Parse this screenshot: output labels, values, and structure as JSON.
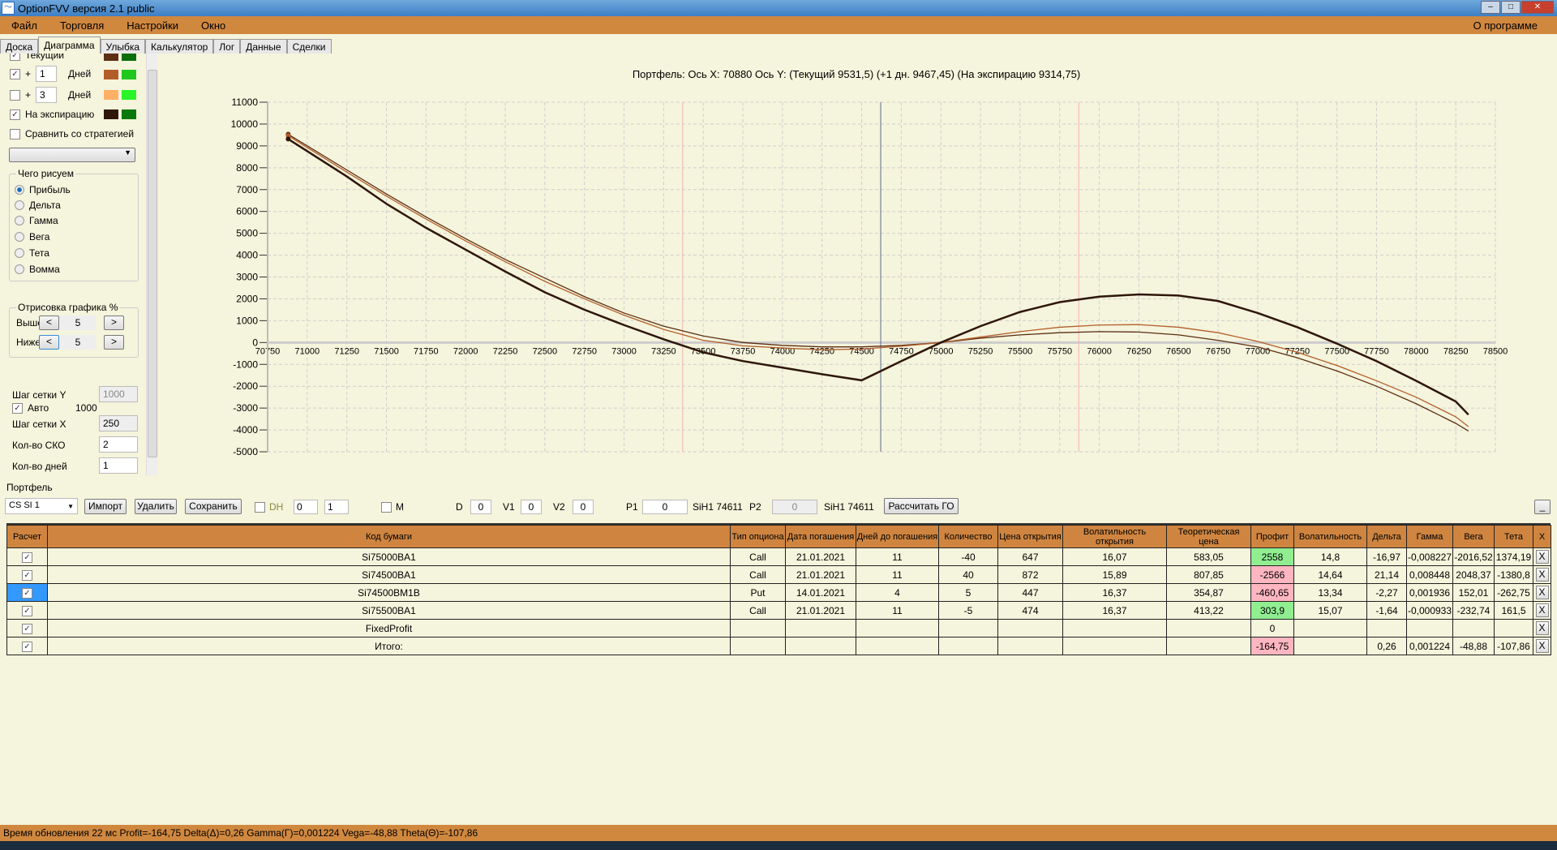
{
  "window": {
    "title": "OptionFVV версия 2.1 public"
  },
  "menu": {
    "items": [
      "Файл",
      "Торговля",
      "Настройки",
      "Окно"
    ],
    "about": "О программе"
  },
  "tabs": [
    "Доска",
    "Диаграмма",
    "Улыбка",
    "Калькулятор",
    "Лог",
    "Данные",
    "Сделки"
  ],
  "active_tab": "Диаграмма",
  "left": {
    "current_label": "Текущий",
    "current_checked": true,
    "current_colors": [
      "#5c2e12",
      "#0a6e0a"
    ],
    "plus1": {
      "sign": "+",
      "value": "1",
      "unit": "Дней",
      "checked": true,
      "colors": [
        "#b35e2a",
        "#1ec81e"
      ]
    },
    "plus3": {
      "sign": "+",
      "value": "3",
      "unit": "Дней",
      "checked": false,
      "colors": [
        "#ffb066",
        "#28f428"
      ]
    },
    "expiry_label": "На экспирацию",
    "expiry_checked": true,
    "expiry_colors": [
      "#2e1608",
      "#0a780a"
    ],
    "compare_label": "Сравнить со стратегией",
    "compare_checked": false,
    "draw_group": "Чего рисуем",
    "draw_options": [
      "Прибыль",
      "Дельта",
      "Гамма",
      "Вега",
      "Тета",
      "Вомма"
    ],
    "draw_selected": "Прибыль",
    "render_group": "Отрисовка графика %",
    "above_label": "Выше",
    "above_value": "5",
    "below_label": "Ниже",
    "below_value": "5",
    "prev": "<",
    "next": ">",
    "grid_y_label": "Шаг сетки Y",
    "grid_y_value": "1000",
    "auto_label": "Авто",
    "auto_checked": true,
    "auto_value": "1000",
    "grid_x_label": "Шаг сетки X",
    "grid_x_value": "250",
    "sko_label": "Кол-во СКО",
    "sko_value": "2",
    "days_label": "Кол-во дней",
    "days_value": "1"
  },
  "chart_data": {
    "type": "line",
    "title": "Портфель: Ось X: 70880 Ось Y:  (Текущий 9531,5)  (+1 дн. 9467,45)  (На экспирацию 9314,75)",
    "xlim": [
      70750,
      78500
    ],
    "ylim": [
      -5000,
      11000
    ],
    "xticks": [
      70750,
      71000,
      71250,
      71500,
      71750,
      72000,
      72250,
      72500,
      72750,
      73000,
      73250,
      73500,
      73750,
      74000,
      74250,
      74500,
      74750,
      75000,
      75250,
      75500,
      75750,
      76000,
      76250,
      76500,
      76750,
      77000,
      77250,
      77500,
      77750,
      78000,
      78250,
      78500
    ],
    "yticks": [
      11000,
      10000,
      9000,
      8000,
      7000,
      6000,
      5000,
      4000,
      3000,
      2000,
      1000,
      0,
      -1000,
      -2000,
      -3000,
      -4000,
      -5000
    ],
    "grid": true,
    "vlines": [
      {
        "x": 73370,
        "color": "#f4b0b0"
      },
      {
        "x": 74620,
        "color": "#5a6a8a"
      },
      {
        "x": 75870,
        "color": "#f4b0b0"
      }
    ],
    "series": [
      {
        "key": "current",
        "color": "#5c2e12",
        "x": [
          70880,
          71250,
          71500,
          71750,
          72000,
          72250,
          72500,
          72750,
          73000,
          73250,
          73500,
          73750,
          74000,
          74250,
          74500,
          74750,
          75000,
          75250,
          75500,
          75750,
          76000,
          76250,
          76500,
          76750,
          77000,
          77250,
          77500,
          77750,
          78000,
          78250,
          78330
        ],
        "y": [
          9531.5,
          7900,
          6800,
          5750,
          4750,
          3800,
          2950,
          2100,
          1350,
          750,
          300,
          0,
          -130,
          -200,
          -200,
          -130,
          0,
          200,
          350,
          450,
          500,
          480,
          350,
          100,
          -200,
          -700,
          -1300,
          -2000,
          -2800,
          -3700,
          -4050
        ]
      },
      {
        "key": "plus1",
        "color": "#b35e2a",
        "x": [
          70880,
          71250,
          71500,
          71750,
          72000,
          72250,
          72500,
          72750,
          73000,
          73250,
          73500,
          73750,
          74000,
          74250,
          74500,
          74750,
          75000,
          75250,
          75500,
          75750,
          76000,
          76250,
          76500,
          76750,
          77000,
          77250,
          77500,
          77750,
          78000,
          78250,
          78330
        ],
        "y": [
          9467.45,
          7800,
          6700,
          5650,
          4650,
          3700,
          2800,
          2000,
          1250,
          600,
          100,
          -150,
          -250,
          -330,
          -300,
          -170,
          0,
          250,
          500,
          700,
          800,
          820,
          700,
          450,
          50,
          -450,
          -1050,
          -1750,
          -2500,
          -3400,
          -3850
        ]
      },
      {
        "key": "expiry",
        "color": "#2e1608",
        "x": [
          70880,
          71250,
          71500,
          71750,
          72000,
          72250,
          72500,
          72750,
          73000,
          73250,
          73500,
          73750,
          74000,
          74250,
          74500,
          74750,
          75000,
          75250,
          75500,
          75750,
          76000,
          76250,
          76500,
          76750,
          77000,
          77250,
          77500,
          77750,
          78000,
          78250,
          78330
        ],
        "y": [
          9314.75,
          7600,
          6350,
          5250,
          4250,
          3250,
          2300,
          1500,
          800,
          150,
          -450,
          -850,
          -1150,
          -1450,
          -1730,
          -850,
          0,
          750,
          1400,
          1850,
          2100,
          2200,
          2150,
          1900,
          1350,
          700,
          -50,
          -850,
          -1750,
          -2700,
          -3300
        ]
      }
    ]
  },
  "portfolio": {
    "caption": "Портфель",
    "selector": "CS SI 1",
    "import": "Импорт",
    "delete": "Удалить",
    "save": "Сохранить",
    "dh_label": "DH",
    "spin1": "0",
    "spin2": "1",
    "m_label": "M",
    "d_label": "D",
    "d_value": "0",
    "v1_label": "V1",
    "v1_value": "0",
    "v2_label": "V2",
    "v2_value": "0",
    "p1_label": "P1",
    "p1_value": "0",
    "p1_sym": "SiH1 74611",
    "p2_label": "P2",
    "p2_value": "0",
    "p2_sym": "SiH1 74611",
    "calc_go": "Рассчитать ГО",
    "collapse": "_",
    "columns": [
      "Расчет",
      "Код бумаги",
      "Тип опциона",
      "Дата погашения",
      "Дней до погашения",
      "Количество",
      "Цена открытия",
      "Волатильность открытия",
      "Теоретическая цена",
      "Профит",
      "Волатильность",
      "Дельта",
      "Гамма",
      "Вега",
      "Тета",
      "X"
    ],
    "rows": [
      {
        "code": "Si75000BA1",
        "type": "Call",
        "date": "21.01.2021",
        "days": "11",
        "qty": "-40",
        "price": "647",
        "vol_open": "16,07",
        "theo": "583,05",
        "profit": "2558",
        "profit_sign": "pos",
        "vol": "14,8",
        "delta": "-16,97",
        "gamma": "-0,008227",
        "vega": "-2016,52",
        "theta": "1374,19"
      },
      {
        "code": "Si74500BA1",
        "type": "Call",
        "date": "21.01.2021",
        "days": "11",
        "qty": "40",
        "price": "872",
        "vol_open": "15,89",
        "theo": "807,85",
        "profit": "-2566",
        "profit_sign": "neg",
        "vol": "14,64",
        "delta": "21,14",
        "gamma": "0,008448",
        "vega": "2048,37",
        "theta": "-1380,8"
      },
      {
        "code": "Si74500BM1B",
        "type": "Put",
        "date": "14.01.2021",
        "days": "4",
        "qty": "5",
        "price": "447",
        "vol_open": "16,37",
        "theo": "354,87",
        "profit": "-460,65",
        "profit_sign": "neg",
        "vol": "13,34",
        "delta": "-2,27",
        "gamma": "0,001936",
        "vega": "152,01",
        "theta": "-262,75",
        "selected": true
      },
      {
        "code": "Si75500BA1",
        "type": "Call",
        "date": "21.01.2021",
        "days": "11",
        "qty": "-5",
        "price": "474",
        "vol_open": "16,37",
        "theo": "413,22",
        "profit": "303,9",
        "profit_sign": "pos",
        "vol": "15,07",
        "delta": "-1,64",
        "gamma": "-0,000933",
        "vega": "-232,74",
        "theta": "161,5"
      },
      {
        "code": "FixedProfit",
        "type": "",
        "date": "",
        "days": "",
        "qty": "",
        "price": "",
        "vol_open": "",
        "theo": "",
        "profit": "0",
        "profit_sign": "",
        "vol": "",
        "delta": "",
        "gamma": "",
        "vega": "",
        "theta": ""
      },
      {
        "code": "Итого:",
        "type": "",
        "date": "",
        "days": "",
        "qty": "",
        "price": "",
        "vol_open": "",
        "theo": "",
        "profit": "-164,75",
        "profit_sign": "neg",
        "vol": "",
        "delta": "0,26",
        "gamma": "0,001224",
        "vega": "-48,88",
        "theta": "-107,86"
      }
    ],
    "row_button": "X"
  },
  "status": "Время обновления 22 мс  Profit=-164,75 Delta(Δ)=0,26 Gamma(Γ)=0,001224 Vega=-48,88 Theta(Θ)=-107,86"
}
